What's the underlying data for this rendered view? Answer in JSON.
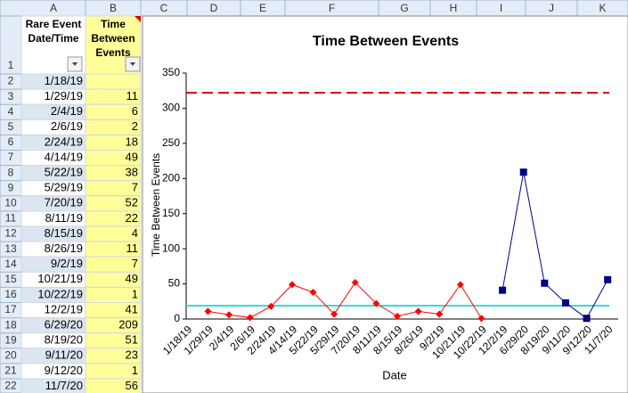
{
  "spreadsheet": {
    "columns": [
      "A",
      "B",
      "C",
      "D",
      "E",
      "F",
      "G",
      "H",
      "I",
      "J",
      "K"
    ],
    "rows": [
      1,
      2,
      3,
      4,
      5,
      6,
      7,
      8,
      9,
      10,
      11,
      12,
      13,
      14,
      15,
      16,
      17,
      18,
      19,
      20,
      21,
      22
    ],
    "headers": [
      [
        "Rare Event",
        "Date/Time"
      ],
      [
        "Time",
        "Between",
        "Events"
      ]
    ]
  },
  "chart_data": {
    "type": "line",
    "title": "Time Between Events",
    "x_label": "Date",
    "y_label": "Time Between Events",
    "categories": [
      "1/18/19",
      "1/29/19",
      "2/4/19",
      "2/6/19",
      "2/24/19",
      "4/14/19",
      "5/22/19",
      "5/29/19",
      "7/20/19",
      "8/11/19",
      "8/15/19",
      "8/26/19",
      "9/2/19",
      "10/21/19",
      "10/22/19",
      "12/2/19",
      "6/29/20",
      "8/19/20",
      "9/11/20",
      "9/12/20",
      "11/7/20"
    ],
    "series": [
      {
        "color": "#ff0000",
        "marker": "diamond",
        "values": [
          null,
          11,
          6,
          2,
          18,
          49,
          38,
          7,
          52,
          22,
          4,
          11,
          7,
          49,
          1,
          null,
          null,
          null,
          null,
          null,
          null
        ]
      },
      {
        "color": "#000080",
        "marker": "square",
        "values": [
          null,
          null,
          null,
          null,
          null,
          null,
          null,
          null,
          null,
          null,
          null,
          null,
          null,
          null,
          null,
          41,
          209,
          51,
          23,
          1,
          56
        ]
      }
    ],
    "reference_lines": [
      {
        "value": 322,
        "color": "#e00000",
        "style": "dashed"
      },
      {
        "value": 19,
        "color": "#33dddd",
        "style": "solid"
      }
    ],
    "ylim": [
      0,
      350
    ],
    "yticks": [
      0,
      50,
      100,
      150,
      200,
      250,
      300,
      350
    ]
  }
}
